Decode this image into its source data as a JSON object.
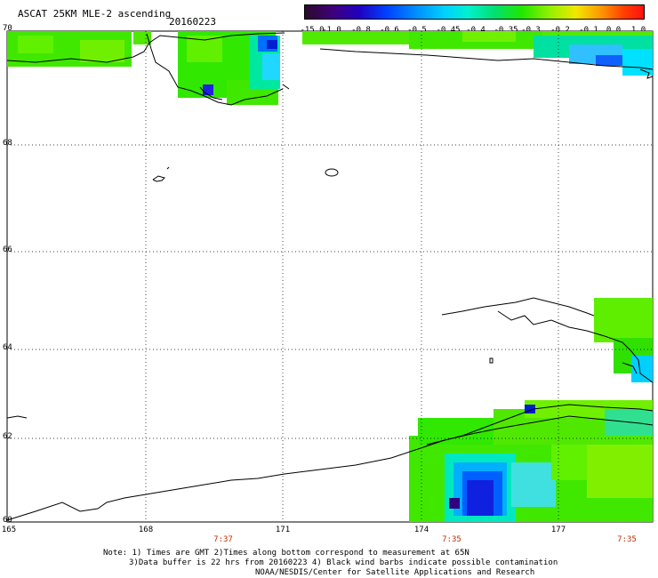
{
  "header": {
    "title": "ASCAT 25KM MLE-2 ascending",
    "date": "20160223"
  },
  "colorbar": {
    "labels": [
      "-15.0",
      "-1.0",
      "-0.8",
      "-0.6",
      "-0.5",
      "-0.45",
      "-0.4",
      "-0.35",
      "-0.3",
      "-0.2",
      "-0.1",
      "0.0",
      "1.0"
    ],
    "colors": [
      "#1a0a1a",
      "#3a007a",
      "#0000d0",
      "#0060ff",
      "#00b0ff",
      "#00e8e8",
      "#00e090",
      "#00e800",
      "#50f000",
      "#b0f000",
      "#f8e000",
      "#ff7000",
      "#ff1010"
    ]
  },
  "map": {
    "lat_labels": [
      "70",
      "68",
      "66",
      "64",
      "62",
      "60"
    ],
    "lon_labels": [
      "165",
      "168",
      "171",
      "174",
      "177"
    ],
    "time_labels": [
      "7:37",
      "7:35",
      "7:35"
    ]
  },
  "footer": {
    "line1": "Note: 1) Times are GMT 2)Times along bottom correspond to measurement at 65N",
    "line2": "3)Data buffer is 22 hrs from 20160223 4) Black wind barbs indicate possible contamination",
    "line3": "NOAA/NESDIS/Center for Satellite Applications and Research"
  }
}
